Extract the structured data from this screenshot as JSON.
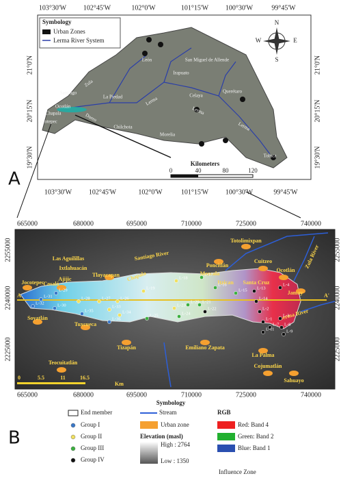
{
  "panel_a": {
    "label": "A",
    "top_ticks": [
      "103°30'W",
      "102°45'W",
      "102°0'W",
      "101°15'W",
      "100°30'W",
      "99°45'W"
    ],
    "bottom_ticks": [
      "103°30'W",
      "102°45'W",
      "102°0'W",
      "101°15'W",
      "100°30'W",
      "99°45'W"
    ],
    "left_ticks": [
      "21°0'N",
      "20°15'N",
      "19°30'N"
    ],
    "right_ticks": [
      "21°0'N",
      "20°15'N",
      "19°30'N"
    ],
    "symbology_title": "Symbology",
    "legend": [
      "Urban Zones",
      "Lerma River System"
    ],
    "compass": [
      "N",
      "S",
      "E",
      "W"
    ],
    "places": [
      "León",
      "San Miguel de Allende",
      "Irapuato",
      "Celaya",
      "Querétaro",
      "Zula",
      "Santiago",
      "La Piedad",
      "Ocotlán",
      "Chapala",
      "Jocotepec",
      "Duero",
      "Chilchota",
      "Morelia",
      "Lerma",
      "Lerma",
      "Lerma",
      "Toluca"
    ],
    "scale_title": "Kilometers",
    "scale_ticks": [
      0,
      40,
      80,
      120
    ]
  },
  "panel_b": {
    "label": "B",
    "top_ticks": [
      665000,
      680000,
      695000,
      710000,
      725000,
      740000
    ],
    "bottom_ticks": [
      665000,
      680000,
      695000,
      710000,
      725000,
      740000
    ],
    "left_ticks": [
      2255000,
      2240000,
      2225000
    ],
    "right_ticks": [
      2255000,
      2240000,
      2225000
    ],
    "places": [
      "Totolimixpan",
      "Santiago River",
      "Zula River",
      "Poncitlán",
      "Mezcala",
      "Cuitzeo",
      "Ocotlán",
      "Las Aguilillas",
      "Ixtlahuacán",
      "Tlayacapan",
      "Chapala",
      "Ajijic",
      "Jocotepec",
      "Cosalá",
      "Itzican",
      "Santa Cruz",
      "Jamay",
      "Lerma River",
      "Soyatlán",
      "Tuxcueca",
      "Tizapán",
      "Emiliano Zapata",
      "La Palma",
      "Cojumatlán",
      "Teocuitatlán",
      "Sahuayo"
    ],
    "section": [
      "A",
      "A'"
    ],
    "samples": [
      "L-31",
      "L-29",
      "L-32",
      "L-30",
      "L-28",
      "L-27",
      "L-26",
      "L-35",
      "L-33",
      "L-34",
      "L-36",
      "L-19",
      "L-18",
      "L-17",
      "L-25",
      "L-24",
      "L-23",
      "L-22",
      "L-21",
      "L-16",
      "L-20",
      "L-15",
      "L-14",
      "L-13",
      "L-2",
      "L-3",
      "L-4",
      "L-1",
      "L-7",
      "L-11",
      "L-8",
      "L-9"
    ],
    "scale_title": "Km",
    "scale_ticks": [
      0,
      5.5,
      11,
      16.5
    ]
  },
  "legend": {
    "title": "Symbology",
    "end_member": "End member",
    "stream": "Stream",
    "rgb": "RGB",
    "groups": [
      "Group I",
      "Group II",
      "Group III",
      "Group IV"
    ],
    "urban_zone": "Urban zone",
    "elevation_title": "Elevation (masl)",
    "high": "High : 2764",
    "low": "Low : 1350",
    "bands": [
      "Red: Band 4",
      "Green: Band 2",
      "Blue: Band 1"
    ],
    "influence_zone": "Influence Zone"
  }
}
